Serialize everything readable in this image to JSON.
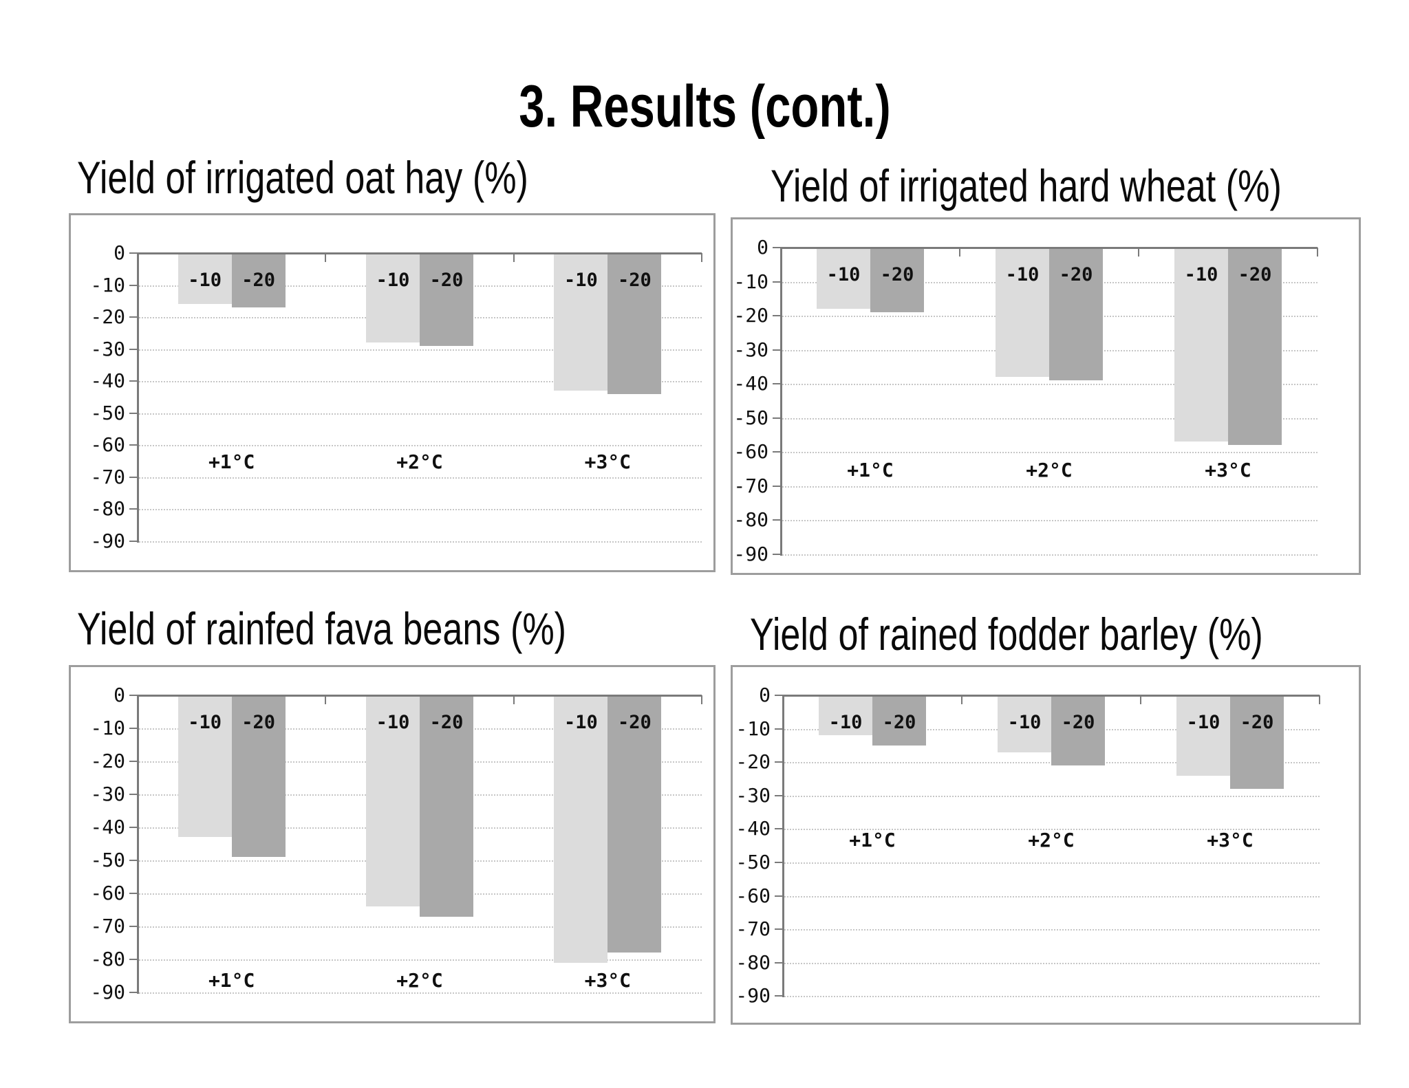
{
  "slide": {
    "title": "3. Results (cont.)"
  },
  "chart_data": [
    {
      "id": "irrigated-oat-hay",
      "title": "Yield of irrigated oat hay (%)",
      "type": "bar",
      "categories": [
        "+1°C",
        "+2°C",
        "+3°C"
      ],
      "series": [
        {
          "name": "-10",
          "color": "#dcdcdc",
          "values": [
            -16,
            -28,
            -43
          ]
        },
        {
          "name": "-20",
          "color": "#a9a9a9",
          "values": [
            -17,
            -29,
            -44
          ]
        }
      ],
      "ylim": [
        0,
        -90
      ],
      "yticks": [
        0,
        -10,
        -20,
        -30,
        -40,
        -50,
        -60,
        -70,
        -80,
        -90
      ],
      "grid": "dotted-horizontal",
      "legend": "labels-printed-on-bars",
      "category_label_depth": -65
    },
    {
      "id": "irrigated-hard-wheat",
      "title": "Yield of irrigated hard wheat (%)",
      "type": "bar",
      "categories": [
        "+1°C",
        "+2°C",
        "+3°C"
      ],
      "series": [
        {
          "name": "-10",
          "color": "#dcdcdc",
          "values": [
            -18,
            -38,
            -57
          ]
        },
        {
          "name": "-20",
          "color": "#a9a9a9",
          "values": [
            -19,
            -39,
            -58
          ]
        }
      ],
      "ylim": [
        0,
        -90
      ],
      "yticks": [
        0,
        -10,
        -20,
        -30,
        -40,
        -50,
        -60,
        -70,
        -80,
        -90
      ],
      "grid": "dotted-horizontal",
      "legend": "labels-printed-on-bars",
      "category_label_depth": -65
    },
    {
      "id": "rainfed-fava-beans",
      "title": "Yield of rainfed fava beans (%)",
      "type": "bar",
      "categories": [
        "+1°C",
        "+2°C",
        "+3°C"
      ],
      "series": [
        {
          "name": "-10",
          "color": "#dcdcdc",
          "values": [
            -43,
            -64,
            -81
          ]
        },
        {
          "name": "-20",
          "color": "#a9a9a9",
          "values": [
            -49,
            -67,
            -78
          ]
        }
      ],
      "ylim": [
        0,
        -90
      ],
      "yticks": [
        0,
        -10,
        -20,
        -30,
        -40,
        -50,
        -60,
        -70,
        -80,
        -90
      ],
      "grid": "dotted-horizontal",
      "legend": "labels-printed-on-bars",
      "category_label_depth": -86
    },
    {
      "id": "rained-fodder-barley",
      "title": "Yield of rained fodder barley (%)",
      "type": "bar",
      "categories": [
        "+1°C",
        "+2°C",
        "+3°C"
      ],
      "series": [
        {
          "name": "-10",
          "color": "#dcdcdc",
          "values": [
            -12,
            -17,
            -24
          ]
        },
        {
          "name": "-20",
          "color": "#a9a9a9",
          "values": [
            -15,
            -21,
            -28
          ]
        }
      ],
      "ylim": [
        0,
        -90
      ],
      "yticks": [
        0,
        -10,
        -20,
        -30,
        -40,
        -50,
        -60,
        -70,
        -80,
        -90
      ],
      "grid": "dotted-horizontal",
      "legend": "labels-printed-on-bars",
      "category_label_depth": -43
    }
  ]
}
